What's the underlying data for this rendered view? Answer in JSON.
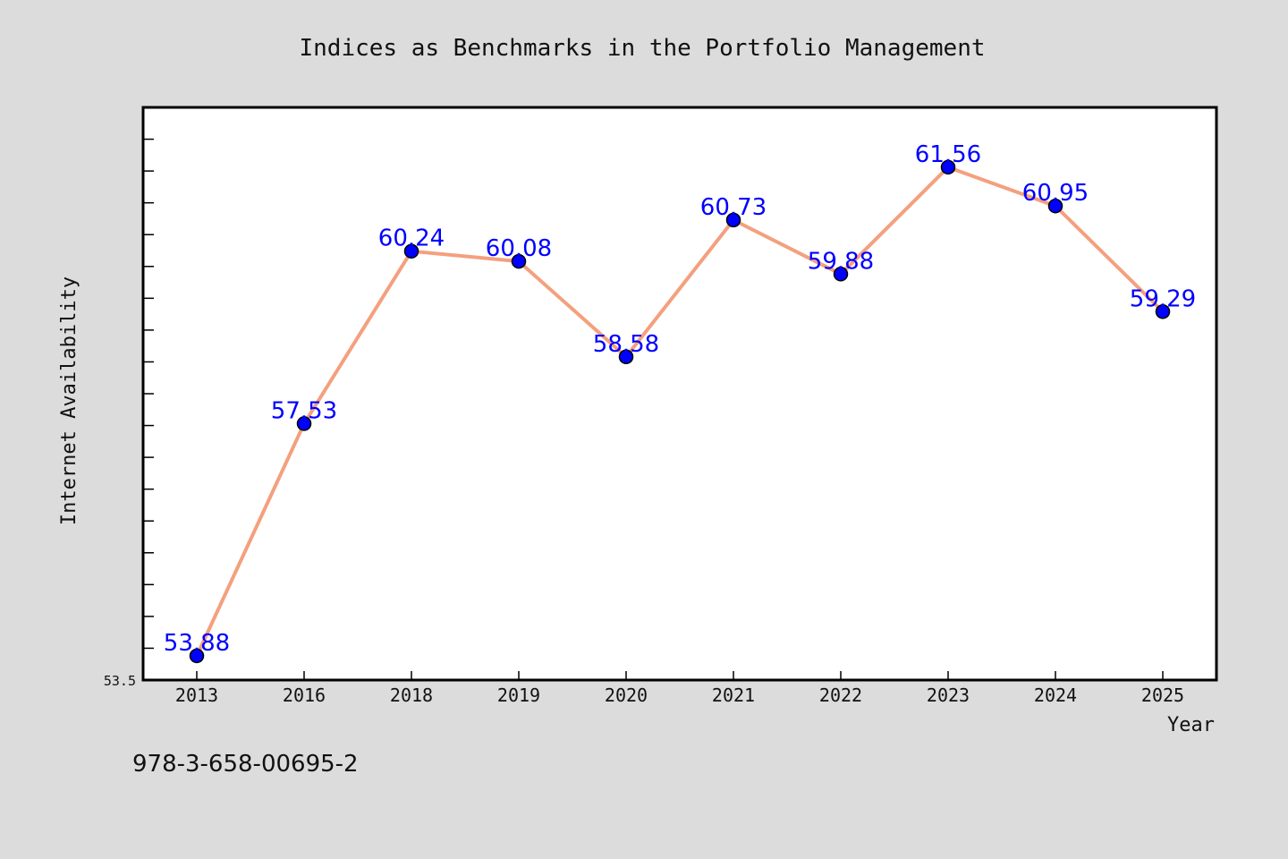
{
  "chart_data": {
    "type": "line",
    "title": "Indices as Benchmarks in the Portfolio Management",
    "xlabel": "Year",
    "ylabel": "Internet Availability",
    "categories": [
      "2013",
      "2016",
      "2018",
      "2019",
      "2020",
      "2021",
      "2022",
      "2023",
      "2024",
      "2025"
    ],
    "series": [
      {
        "values": [
          53.88,
          57.53,
          60.24,
          60.08,
          58.58,
          60.73,
          59.88,
          61.56,
          60.95,
          59.29
        ],
        "value_labels": [
          "53.88",
          "57.53",
          "60.24",
          "60.08",
          "58.58",
          "60.73",
          "59.88",
          "61.56",
          "60.95",
          "59.29"
        ],
        "line_color": "#f4a07e",
        "marker_color": "#0000ff"
      }
    ],
    "ylim": [
      53.5,
      62.5
    ],
    "y_tick_label": "53.5",
    "y_minor_tick_step": 0.5,
    "grid": false,
    "legend": "none",
    "label_color": "#0000ff",
    "background": "#ffffff",
    "page_background": "#dcdcdc"
  },
  "footer": {
    "isbn": "978-3-658-00695-2"
  }
}
